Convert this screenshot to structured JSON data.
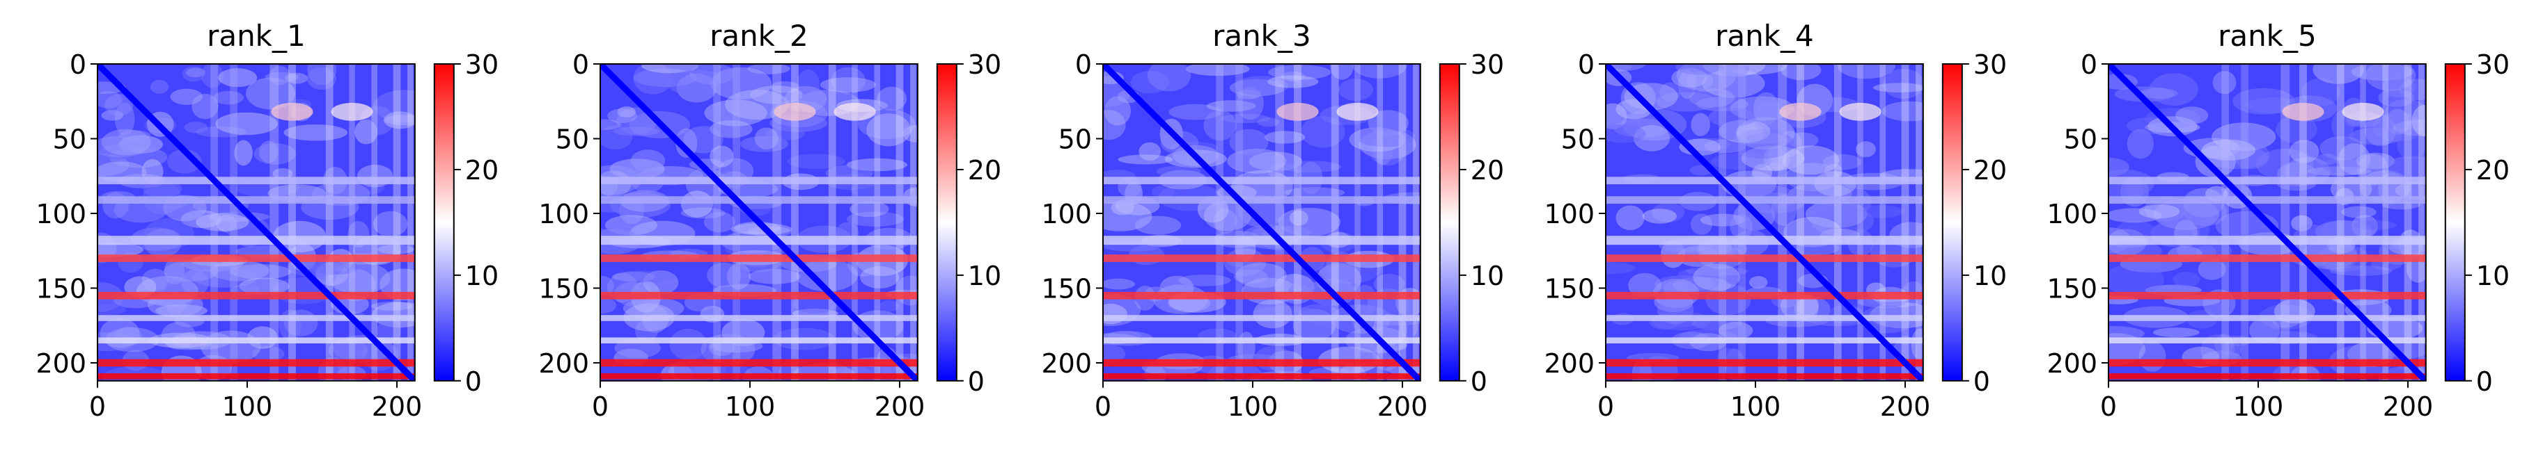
{
  "chart_data": {
    "type": "heatmap",
    "colormap": {
      "low": "#0000ff",
      "mid": "#ffffff",
      "high": "#ff0000",
      "range": [
        0,
        30
      ]
    },
    "axes": {
      "xlim": [
        0,
        212
      ],
      "ylim": [
        0,
        212
      ],
      "x_ticks": [
        0,
        100,
        200
      ],
      "y_ticks": [
        0,
        50,
        100,
        150,
        200
      ],
      "y_inverted": true
    },
    "colorbar": {
      "ticks": [
        0,
        10,
        20,
        30
      ]
    },
    "structure": {
      "n_residues": 212,
      "base_value": 4,
      "stripes": [
        {
          "center": 78,
          "width": 2.5,
          "value": 11
        },
        {
          "center": 91,
          "width": 2.5,
          "value": 10
        },
        {
          "center": 118,
          "width": 3,
          "value": 12
        },
        {
          "center": 130,
          "width": 2.5,
          "value": 26
        },
        {
          "center": 155,
          "width": 2.5,
          "value": 27
        },
        {
          "center": 170,
          "width": 2,
          "value": 12
        },
        {
          "center": 185,
          "width": 2,
          "value": 13
        },
        {
          "center": 200,
          "width": 2.5,
          "value": 29
        },
        {
          "center": 209,
          "width": 2,
          "value": 30
        }
      ],
      "hotspots": [
        {
          "x": 130,
          "y": 32,
          "value": 18
        },
        {
          "x": 170,
          "y": 32,
          "value": 16
        }
      ]
    },
    "panels": [
      {
        "title": "rank_1"
      },
      {
        "title": "rank_2"
      },
      {
        "title": "rank_3"
      },
      {
        "title": "rank_4"
      },
      {
        "title": "rank_5"
      }
    ]
  }
}
